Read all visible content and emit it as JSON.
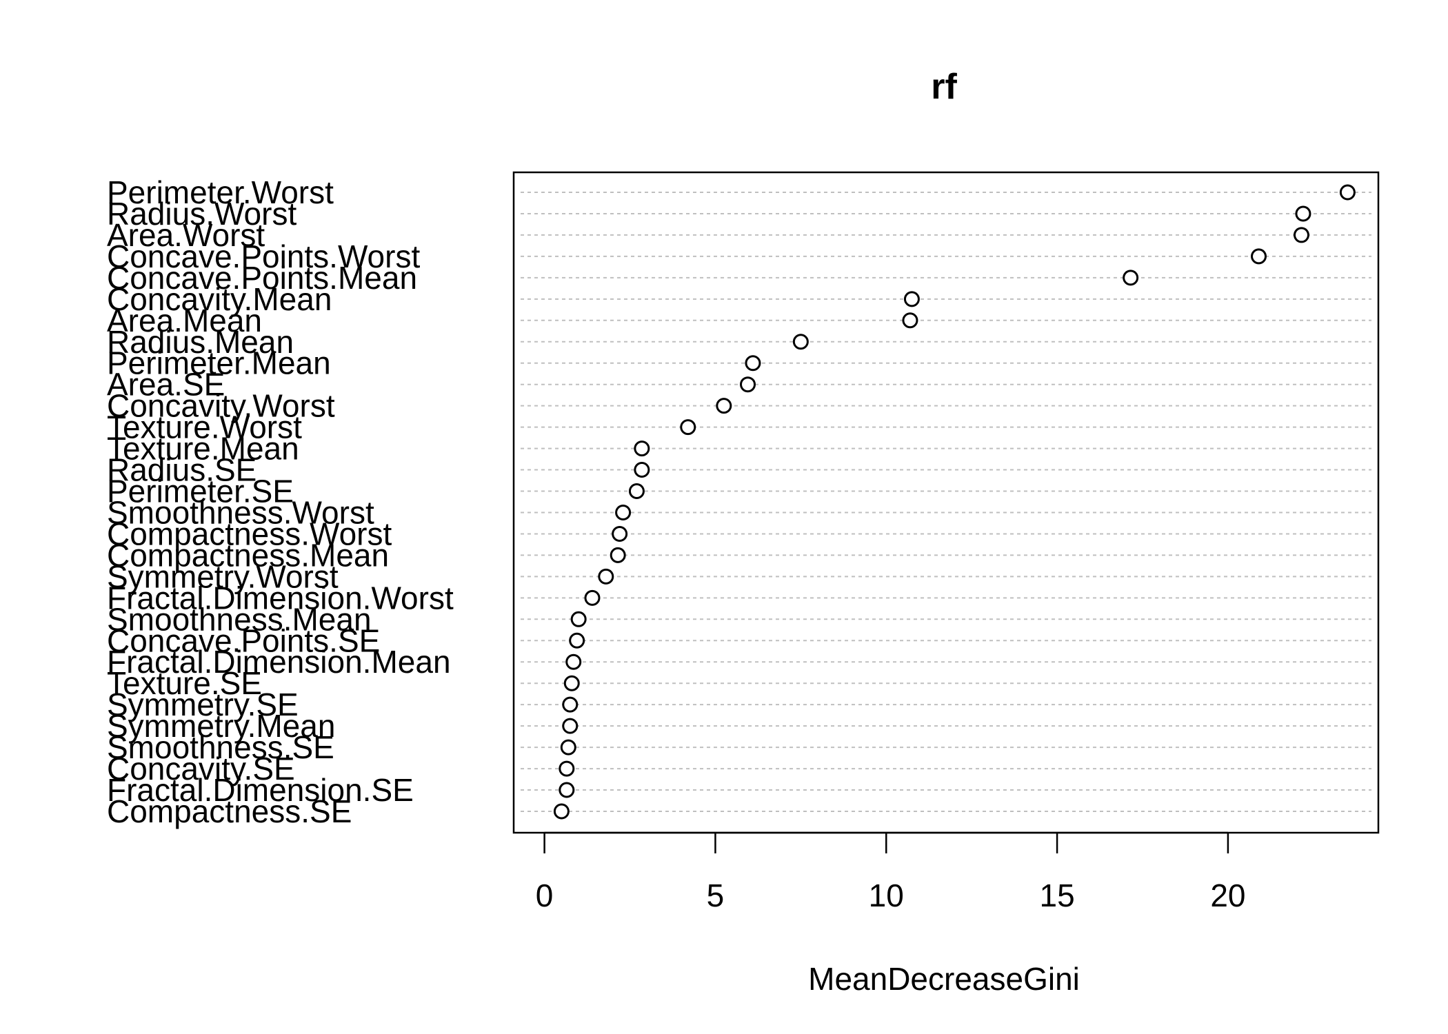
{
  "chart_data": {
    "type": "scatter",
    "variant": "dotchart",
    "title": "rf",
    "xlabel": "MeanDecreaseGini",
    "ylabel": "",
    "xlim": [
      -0.9,
      24.4
    ],
    "xticks": [
      0,
      5,
      10,
      15,
      20
    ],
    "grid": "horizontal dotted guide per category",
    "legend": "none",
    "categories": [
      "Perimeter.Worst",
      "Radius.Worst",
      "Area.Worst",
      "Concave.Points.Worst",
      "Concave.Points.Mean",
      "Concavity.Mean",
      "Area.Mean",
      "Radius.Mean",
      "Perimeter.Mean",
      "Area.SE",
      "Concavity.Worst",
      "Texture.Worst",
      "Texture.Mean",
      "Radius.SE",
      "Perimeter.SE",
      "Smoothness.Worst",
      "Compactness.Worst",
      "Compactness.Mean",
      "Symmetry.Worst",
      "Fractal.Dimension.Worst",
      "Smoothness.Mean",
      "Concave.Points.SE",
      "Fractal.Dimension.Mean",
      "Texture.SE",
      "Symmetry.SE",
      "Symmetry.Mean",
      "Smoothness.SE",
      "Concavity.SE",
      "Fractal.Dimension.SE",
      "Compactness.SE"
    ],
    "values": [
      23.5,
      22.2,
      22.15,
      20.9,
      17.15,
      10.75,
      10.7,
      7.5,
      6.1,
      5.95,
      5.25,
      4.2,
      2.85,
      2.85,
      2.7,
      2.3,
      2.2,
      2.15,
      1.8,
      1.4,
      1.0,
      0.95,
      0.85,
      0.8,
      0.75,
      0.75,
      0.7,
      0.65,
      0.65,
      0.5
    ]
  }
}
